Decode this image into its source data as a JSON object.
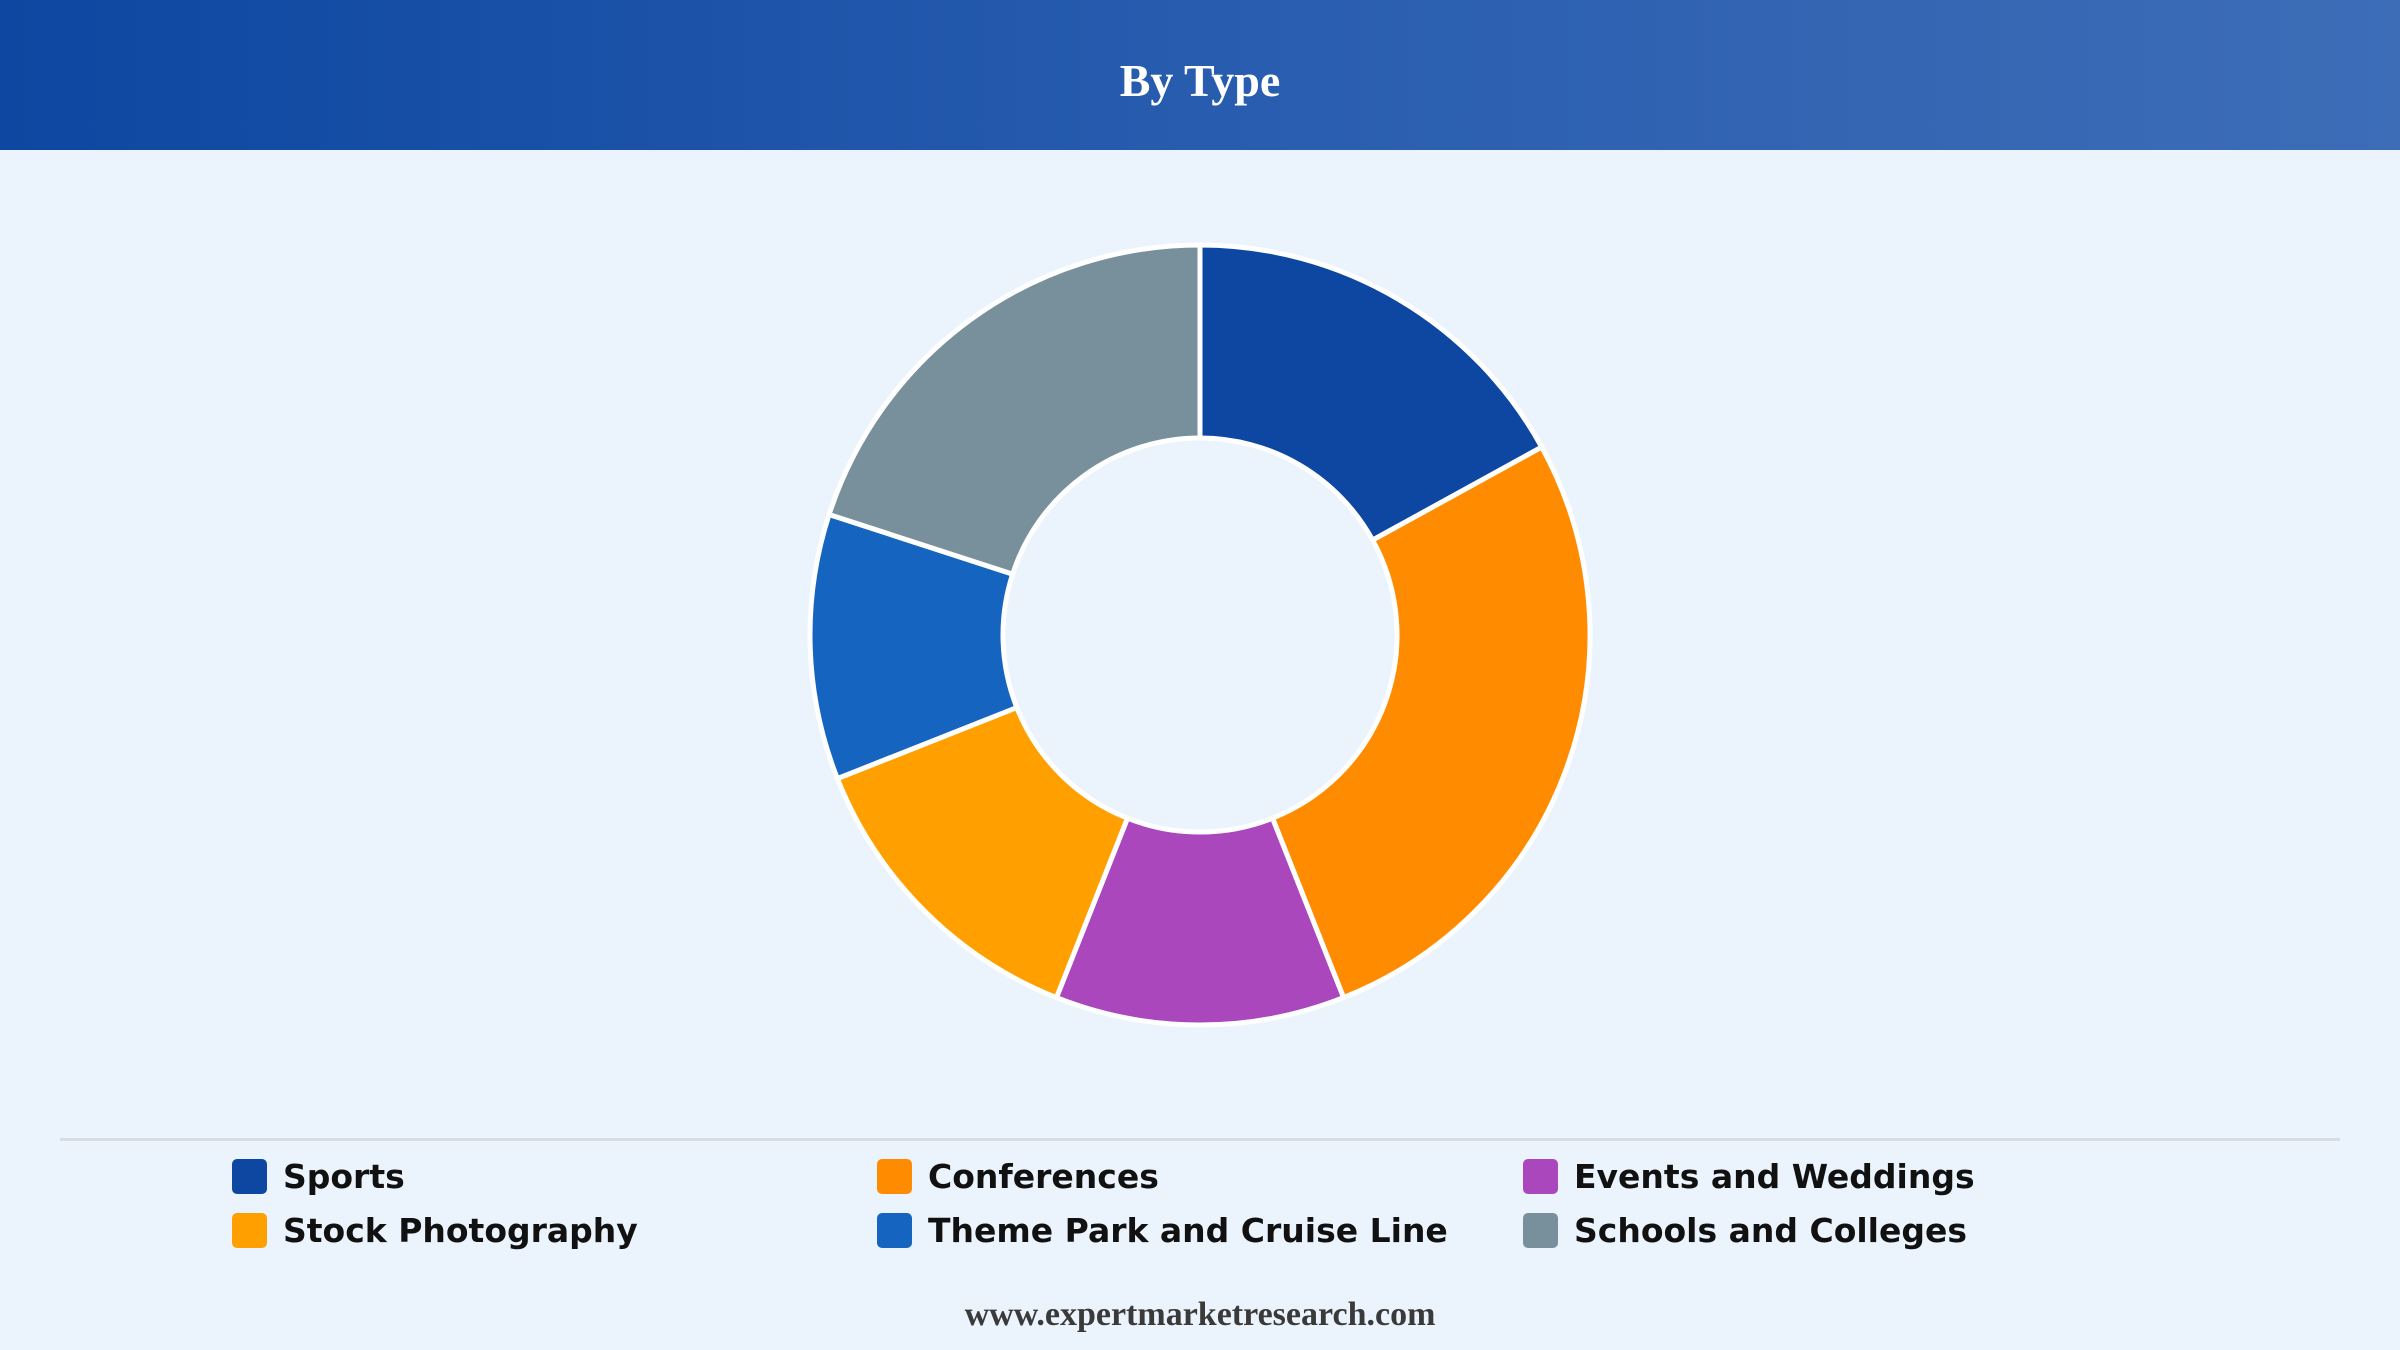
{
  "header": {
    "title": "By Type"
  },
  "footer": {
    "source": "www.expertmarketresearch.com"
  },
  "chart_data": {
    "type": "pie",
    "subtype": "donut",
    "title": "By Type",
    "start": "12 o'clock, clockwise",
    "legend_position": "bottom",
    "series": [
      {
        "label": "Sports",
        "value": 17,
        "color": "#0d47a1"
      },
      {
        "label": "Conferences",
        "value": 27,
        "color": "#ff8c00"
      },
      {
        "label": "Events and Weddings",
        "value": 12,
        "color": "#ab47bc"
      },
      {
        "label": "Stock Photography",
        "value": 13,
        "color": "#ffa000"
      },
      {
        "label": "Theme Park and Cruise Line",
        "value": 11,
        "color": "#1565c0"
      },
      {
        "label": "Schools and Colleges",
        "value": 20,
        "color": "#78909c"
      }
    ]
  }
}
